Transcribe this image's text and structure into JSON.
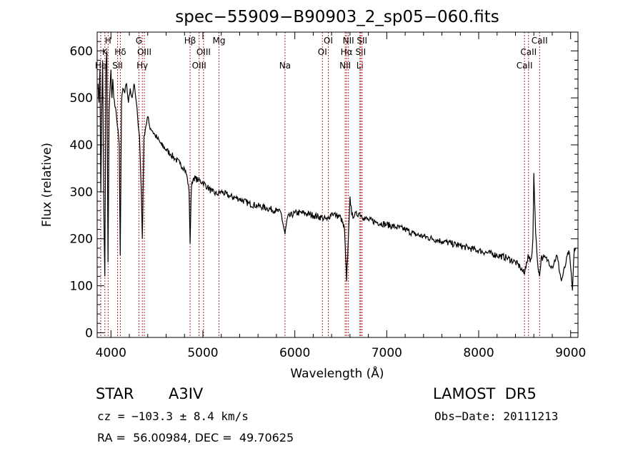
{
  "chart_data": {
    "type": "line",
    "title": "spec−55909−B90903_2_sp05−060.fits",
    "xlabel": "Wavelength (Å)",
    "ylabel": "Flux (relative)",
    "xlim": [
      3850,
      9080
    ],
    "ylim": [
      -10,
      640
    ],
    "xticks": [
      4000,
      5000,
      6000,
      7000,
      8000,
      9000
    ],
    "yticks": [
      0,
      100,
      200,
      300,
      400,
      500,
      600
    ],
    "grid": false,
    "line_color": "#000000",
    "marker_color": "#b22222",
    "series": [
      {
        "x": [
          3860,
          3870,
          3880,
          3890,
          3900,
          3910,
          3920,
          3933,
          3945,
          3955,
          3968,
          3980,
          3990,
          4000,
          4010,
          4020,
          4030,
          4050,
          4070,
          4090,
          4101,
          4115,
          4130,
          4150,
          4170,
          4190,
          4210,
          4230,
          4250,
          4270,
          4290,
          4310,
          4330,
          4341,
          4350,
          4360,
          4380,
          4400,
          4420,
          4450,
          4480,
          4500,
          4550,
          4600,
          4650,
          4700,
          4750,
          4800,
          4830,
          4850,
          4861,
          4870,
          4880,
          4900,
          4950,
          5000,
          5050,
          5100,
          5150,
          5200,
          5300,
          5400,
          5500,
          5600,
          5700,
          5800,
          5850,
          5893,
          5920,
          6000,
          6100,
          6200,
          6300,
          6350,
          6400,
          6450,
          6500,
          6540,
          6563,
          6580,
          6600,
          6620,
          6650,
          6700,
          6750,
          6800,
          6900,
          7000,
          7100,
          7200,
          7300,
          7400,
          7500,
          7600,
          7700,
          7800,
          7900,
          8000,
          8100,
          8200,
          8300,
          8400,
          8450,
          8498,
          8520,
          8542,
          8560,
          8580,
          8590,
          8600,
          8620,
          8640,
          8662,
          8680,
          8700,
          8750,
          8800,
          8850,
          8900,
          8950,
          8980,
          9000,
          9020,
          9040,
          9060
        ],
        "y": [
          530,
          490,
          560,
          300,
          470,
          580,
          300,
          120,
          560,
          600,
          150,
          470,
          520,
          560,
          500,
          540,
          500,
          480,
          440,
          400,
          165,
          490,
          520,
          510,
          530,
          490,
          520,
          500,
          530,
          500,
          460,
          420,
          300,
          200,
          310,
          420,
          440,
          460,
          440,
          430,
          420,
          415,
          400,
          390,
          380,
          370,
          360,
          350,
          330,
          300,
          190,
          280,
          320,
          330,
          325,
          320,
          310,
          300,
          295,
          300,
          290,
          285,
          275,
          270,
          265,
          260,
          255,
          210,
          245,
          255,
          255,
          250,
          245,
          240,
          255,
          250,
          245,
          220,
          110,
          190,
          290,
          250,
          250,
          255,
          245,
          240,
          235,
          230,
          225,
          220,
          210,
          205,
          200,
          195,
          190,
          185,
          180,
          175,
          170,
          165,
          160,
          150,
          140,
          125,
          150,
          165,
          150,
          170,
          200,
          340,
          210,
          150,
          120,
          160,
          160,
          155,
          140,
          165,
          110,
          150,
          175,
          140,
          90,
          180,
          180
        ]
      }
    ],
    "lines": [
      {
        "wave": 3889,
        "label": "He",
        "row": 3
      },
      {
        "wave": 3934,
        "label": "K",
        "row": 2
      },
      {
        "wave": 3969,
        "label": "H",
        "row": 1
      },
      {
        "wave": 4072,
        "label": "SII",
        "row": 3
      },
      {
        "wave": 4102,
        "label": "Hδ",
        "row": 2
      },
      {
        "wave": 4304,
        "label": "G",
        "row": 1
      },
      {
        "wave": 4341,
        "label": "Hγ",
        "row": 3
      },
      {
        "wave": 4363,
        "label": "OIII",
        "row": 2
      },
      {
        "wave": 4861,
        "label": "Hβ",
        "row": 1
      },
      {
        "wave": 4959,
        "label": "OIII",
        "row": 3
      },
      {
        "wave": 5007,
        "label": "OIII",
        "row": 2
      },
      {
        "wave": 5175,
        "label": "Mg",
        "row": 1
      },
      {
        "wave": 5893,
        "label": "Na",
        "row": 3
      },
      {
        "wave": 6300,
        "label": "OI",
        "row": 2
      },
      {
        "wave": 6364,
        "label": "OI",
        "row": 1
      },
      {
        "wave": 6548,
        "label": "NII",
        "row": 3
      },
      {
        "wave": 6563,
        "label": "Hα",
        "row": 2
      },
      {
        "wave": 6583,
        "label": "NII",
        "row": 1
      },
      {
        "wave": 6708,
        "label": "Li",
        "row": 3
      },
      {
        "wave": 6716,
        "label": "SII",
        "row": 2
      },
      {
        "wave": 6731,
        "label": "SII",
        "row": 1
      },
      {
        "wave": 8498,
        "label": "CaII",
        "row": 3
      },
      {
        "wave": 8542,
        "label": "CaII",
        "row": 2
      },
      {
        "wave": 8662,
        "label": "CaII",
        "row": 1
      }
    ]
  },
  "info": {
    "object_class": "STAR",
    "subclass": "A3IV",
    "survey": "LAMOST  DR5",
    "redshift": "cz = −103.3 ± 8.4 km/s",
    "obs_date": "Obs−Date: 20111213",
    "coords": "RA =  56.00984, DEC =  49.70625"
  }
}
